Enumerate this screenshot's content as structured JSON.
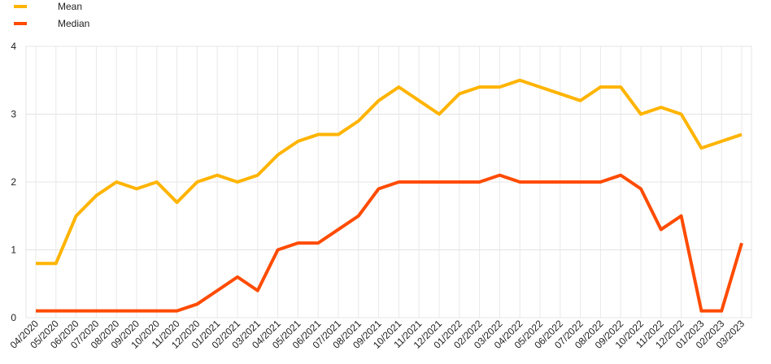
{
  "chart_data": {
    "type": "line",
    "title": "",
    "xlabel": "",
    "ylabel": "",
    "ylim": [
      0,
      4
    ],
    "y_ticks": [
      "0",
      "1",
      "2",
      "3",
      "4"
    ],
    "grid": true,
    "legend_position": "top-left",
    "categories": [
      "04/2020",
      "05/2020",
      "06/2020",
      "07/2020",
      "08/2020",
      "09/2020",
      "10/2020",
      "11/2020",
      "12/2020",
      "01/2021",
      "02/2021",
      "03/2021",
      "04/2021",
      "05/2021",
      "06/2021",
      "07/2021",
      "08/2021",
      "09/2021",
      "10/2021",
      "11/2021",
      "12/2021",
      "01/2022",
      "02/2022",
      "03/2022",
      "04/2022",
      "05/2022",
      "06/2022",
      "07/2022",
      "08/2022",
      "09/2022",
      "10/2022",
      "11/2022",
      "12/2022",
      "01/2023",
      "02/2023",
      "03/2023"
    ],
    "series": [
      {
        "name": "Mean",
        "color": "#ffb400",
        "values": [
          0.8,
          0.8,
          1.5,
          1.8,
          2.0,
          1.9,
          2.0,
          1.7,
          2.0,
          2.1,
          2.0,
          2.1,
          2.4,
          2.6,
          2.7,
          2.7,
          2.9,
          3.2,
          3.4,
          3.2,
          3.0,
          3.3,
          3.4,
          3.4,
          3.5,
          3.4,
          3.3,
          3.2,
          3.4,
          3.4,
          3.0,
          3.1,
          3.0,
          2.5,
          2.6,
          2.7
        ]
      },
      {
        "name": "Median",
        "color": "#ff4b00",
        "values": [
          0.1,
          0.1,
          0.1,
          0.1,
          0.1,
          0.1,
          0.1,
          0.1,
          0.2,
          0.4,
          0.6,
          0.4,
          1.0,
          1.1,
          1.1,
          1.3,
          1.5,
          1.9,
          2.0,
          2.0,
          2.0,
          2.0,
          2.0,
          2.1,
          2.0,
          2.0,
          2.0,
          2.0,
          2.0,
          2.1,
          1.9,
          1.3,
          1.5,
          0.1,
          0.1,
          1.1
        ]
      }
    ]
  }
}
